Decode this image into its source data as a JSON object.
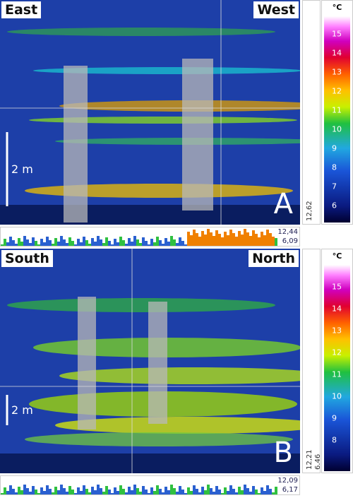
{
  "panels": [
    {
      "left_label": "East",
      "right_label": "West",
      "scale_label": "2 m",
      "letter": "A",
      "side_label": "12,62",
      "bottom_max": "12,44",
      "bottom_min": "6,09",
      "colorbar": {
        "unit": "°C",
        "ticks": [
          6,
          7,
          8,
          9,
          10,
          11,
          12,
          13,
          14,
          15
        ],
        "tick0_y": 290,
        "tick_step": 27
      }
    },
    {
      "left_label": "South",
      "right_label": "North",
      "scale_label": "2 m",
      "letter": "B",
      "side_label": "12,21",
      "side_min": "6,46",
      "bottom_max": "12,09",
      "bottom_min": "6,17",
      "colorbar": {
        "unit": "°C",
        "ticks": [
          8,
          9,
          10,
          11,
          12,
          13,
          14,
          15
        ],
        "tick0_y": 270,
        "tick_step": 31
      }
    }
  ]
}
